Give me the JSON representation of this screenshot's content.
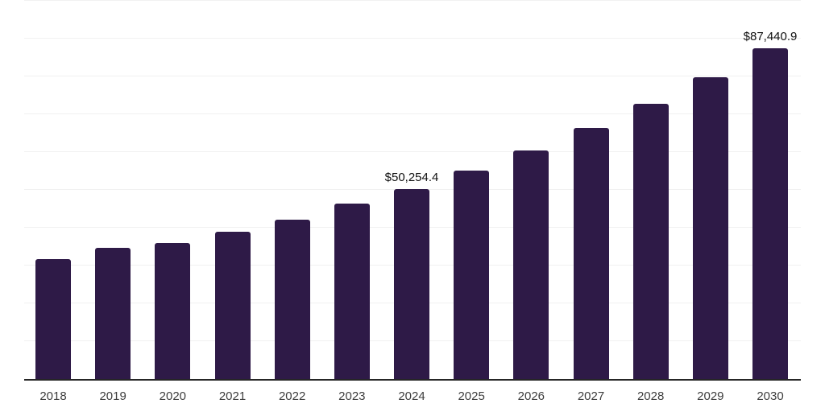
{
  "page": {
    "background_color": "#ffffff"
  },
  "chart_data": {
    "type": "bar",
    "title": "",
    "xlabel": "",
    "ylabel": "",
    "categories": [
      "2018",
      "2019",
      "2020",
      "2021",
      "2022",
      "2023",
      "2024",
      "2025",
      "2026",
      "2027",
      "2028",
      "2029",
      "2030"
    ],
    "values": [
      31800,
      34700,
      36000,
      38900,
      42100,
      46300,
      50254.4,
      55100,
      60400,
      66300,
      72700,
      79700,
      87440.9
    ],
    "value_labels": {
      "2024": "$50,254.4",
      "2030": "$87,440.9"
    },
    "ylim": [
      0,
      100000
    ],
    "gridline_interval": 10000,
    "grid": "horizontal",
    "legend": "none",
    "y_axis_tick_labels_visible": false,
    "bar_color": "#2e1a47",
    "gridline_color": "#f1f1f1",
    "axis_line_color": "#262626",
    "tick_label_color": "#3d3d3d",
    "value_label_color": "#111111"
  }
}
